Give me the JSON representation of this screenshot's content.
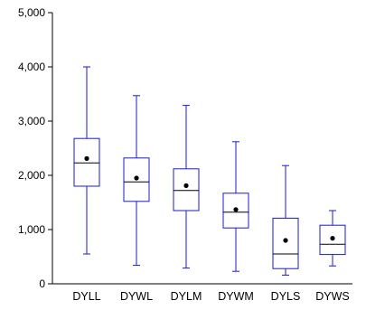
{
  "chart_data": {
    "type": "boxplot",
    "title": "",
    "xlabel": "",
    "ylabel": "",
    "ylim": [
      0,
      5000
    ],
    "yticks": [
      0,
      1000,
      2000,
      3000,
      4000,
      5000
    ],
    "ytick_labels": [
      "0",
      "1,000",
      "2,000",
      "3,000",
      "4,000",
      "5,000"
    ],
    "grid": false,
    "colors": {
      "box": "#1a1ad6",
      "median": "#000000",
      "mean": "#000000",
      "axis": "#000000"
    },
    "categories": [
      "DYLL",
      "DYWL",
      "DYLM",
      "DYWM",
      "DYLS",
      "DYWS"
    ],
    "boxes": [
      {
        "min": 550,
        "q1": 1800,
        "median": 2230,
        "q3": 2680,
        "max": 4000,
        "mean": 2310
      },
      {
        "min": 340,
        "q1": 1520,
        "median": 1880,
        "q3": 2320,
        "max": 3470,
        "mean": 1950
      },
      {
        "min": 290,
        "q1": 1350,
        "median": 1720,
        "q3": 2120,
        "max": 3290,
        "mean": 1810
      },
      {
        "min": 230,
        "q1": 1030,
        "median": 1320,
        "q3": 1670,
        "max": 2620,
        "mean": 1370
      },
      {
        "min": 160,
        "q1": 280,
        "median": 550,
        "q3": 1210,
        "max": 2180,
        "mean": 800
      },
      {
        "min": 330,
        "q1": 540,
        "median": 730,
        "q3": 1080,
        "max": 1350,
        "mean": 840
      }
    ]
  }
}
